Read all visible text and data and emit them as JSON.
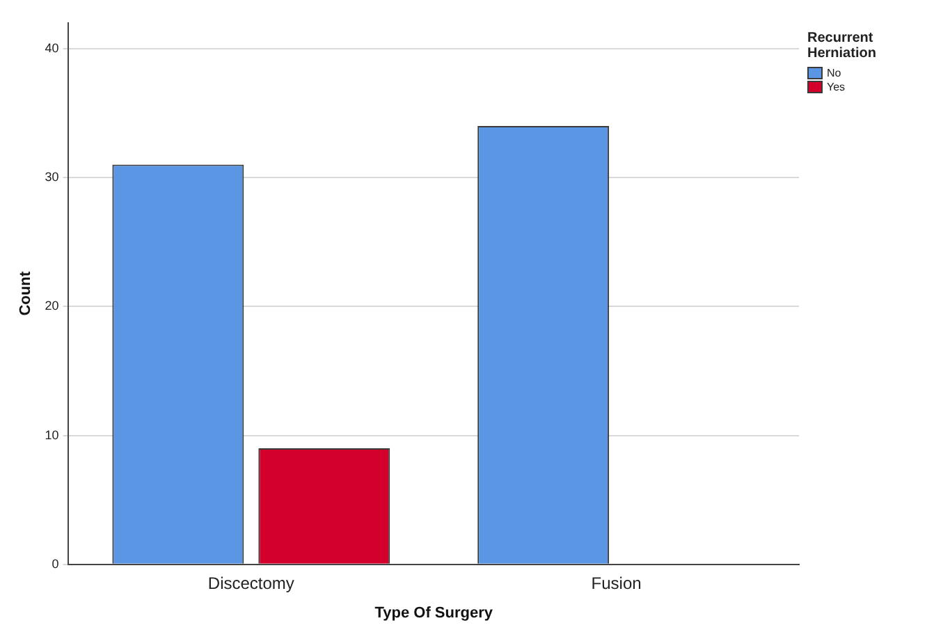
{
  "chart_data": {
    "type": "bar",
    "xlabel": "Type Of Surgery",
    "ylabel": "Count",
    "legend_title": "Recurrent Herniation",
    "categories": [
      "Discectomy",
      "Fusion"
    ],
    "series": [
      {
        "name": "No",
        "color": "#5a96e3",
        "values": [
          31,
          34
        ]
      },
      {
        "name": "Yes",
        "color": "#d2002a",
        "values": [
          9,
          null
        ]
      }
    ],
    "ylim": [
      0,
      42
    ],
    "yticks": [
      0,
      10,
      20,
      30,
      40
    ],
    "grid": "y",
    "legend": "top right"
  }
}
